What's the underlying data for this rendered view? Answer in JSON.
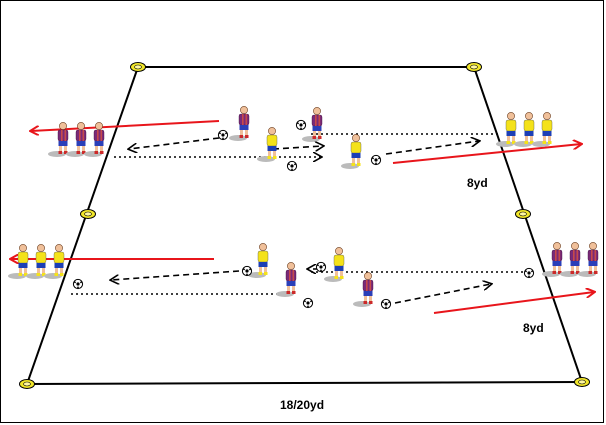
{
  "labels": {
    "top_distance": "8yd",
    "bottom_distance": "8yd",
    "width": "18/20yd"
  },
  "colors": {
    "field_line": "#000000",
    "run_arrow": "#e8151b",
    "pass_path": "#000000",
    "cone": "#f1e62a",
    "team_yellow_shirt": "#f4e21a",
    "team_yellow_shorts": "#1d3fb5",
    "team_maroon_shirt": "#7a2a77",
    "team_maroon_shorts": "#2b3fb8"
  },
  "icons": {
    "cone": "cone-icon",
    "ball": "ball-icon",
    "player": "player-icon"
  }
}
